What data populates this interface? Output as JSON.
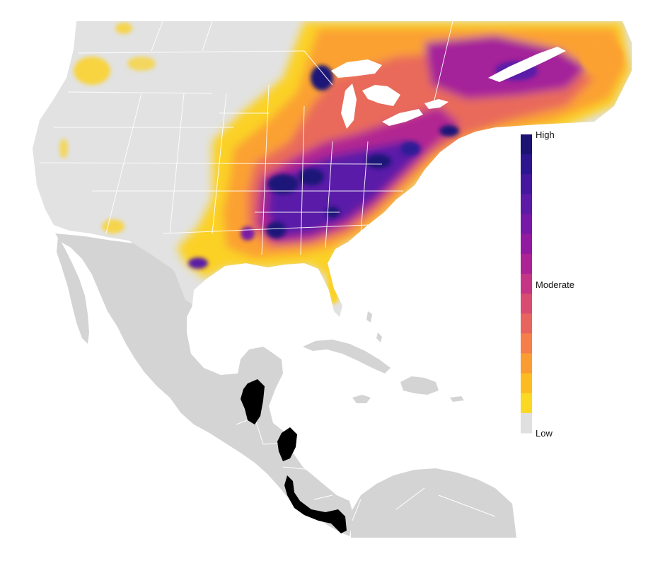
{
  "legend": {
    "high_label": "High",
    "moderate_label": "Moderate",
    "low_label": "Low",
    "colors_high_to_low": [
      "#1b1272",
      "#2e1590",
      "#45179e",
      "#5c1aa6",
      "#7719a8",
      "#921aa1",
      "#ac2395",
      "#c43685",
      "#d84c72",
      "#e8645e",
      "#f47f4a",
      "#fb9c33",
      "#fdbb22",
      "#fbd821",
      "#e0e0e0"
    ]
  },
  "map": {
    "land_color": "#d4d4d4",
    "us_canada_base_color": "#e2e2e2",
    "border_color": "#ffffff",
    "wintering_range_color": "#000000",
    "ocean_color": "#ffffff"
  }
}
